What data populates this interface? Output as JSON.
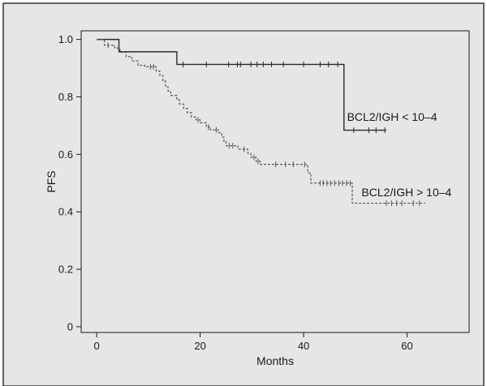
{
  "colors": {
    "outer_background": "#ffffff",
    "panel_background": "#e6e6e6",
    "frame": "#333333",
    "plot_area": "#e6e6e6",
    "axis": "#1a1a1a",
    "series_low": "#2a2a2a",
    "series_high": "#555555"
  },
  "chart_data": {
    "type": "line",
    "subtype": "kaplan-meier step curve",
    "title": "",
    "xlabel": "Months",
    "ylabel": "PFS",
    "xlim": [
      -3,
      72
    ],
    "ylim": [
      -0.02,
      1.03
    ],
    "x_ticks": [
      0,
      20,
      40,
      60
    ],
    "x_tick_labels": [
      "0",
      "20",
      "40",
      "60"
    ],
    "y_ticks": [
      0,
      0.2,
      0.4,
      0.6,
      0.8,
      1.0
    ],
    "y_tick_labels": [
      "0",
      "0.2",
      "0.4",
      "0.6",
      "0.8",
      "1.0"
    ],
    "grid": false,
    "legend": "none",
    "series": [
      {
        "name": "BCL2/IGH < 10–4",
        "line_style": "solid",
        "steps": [
          [
            0,
            1.0
          ],
          [
            4.3,
            0.957
          ],
          [
            15.5,
            0.913
          ],
          [
            47.8,
            0.684
          ],
          [
            56.0,
            0.684
          ]
        ],
        "censored_x": [
          16.7,
          21.2,
          25.5,
          27.2,
          27.8,
          29.8,
          31.0,
          32.2,
          33.8,
          36.1,
          40.0,
          43.2,
          44.8,
          46.6,
          49.7,
          52.6,
          54.0,
          55.7
        ]
      },
      {
        "name": "BCL2/IGH > 10–4",
        "line_style": "dashed",
        "steps": [
          [
            0,
            1.0
          ],
          [
            1.5,
            0.98
          ],
          [
            3.5,
            0.97
          ],
          [
            4.5,
            0.955
          ],
          [
            5.7,
            0.94
          ],
          [
            6.8,
            0.925
          ],
          [
            8.0,
            0.91
          ],
          [
            9.3,
            0.905
          ],
          [
            11.5,
            0.89
          ],
          [
            12.2,
            0.875
          ],
          [
            12.8,
            0.855
          ],
          [
            13.3,
            0.835
          ],
          [
            13.8,
            0.82
          ],
          [
            14.3,
            0.805
          ],
          [
            15.5,
            0.79
          ],
          [
            16.0,
            0.775
          ],
          [
            16.8,
            0.76
          ],
          [
            17.5,
            0.745
          ],
          [
            18.3,
            0.73
          ],
          [
            19.2,
            0.72
          ],
          [
            20.0,
            0.71
          ],
          [
            21.2,
            0.695
          ],
          [
            22.0,
            0.685
          ],
          [
            23.5,
            0.675
          ],
          [
            24.2,
            0.66
          ],
          [
            24.6,
            0.645
          ],
          [
            25.0,
            0.63
          ],
          [
            27.3,
            0.618
          ],
          [
            29.2,
            0.604
          ],
          [
            29.8,
            0.59
          ],
          [
            30.8,
            0.576
          ],
          [
            31.6,
            0.565
          ],
          [
            40.8,
            0.535
          ],
          [
            41.4,
            0.5
          ],
          [
            49.4,
            0.43
          ],
          [
            63.5,
            0.43
          ]
        ],
        "censored_x": [
          2.2,
          10.4,
          11.0,
          19.6,
          21.6,
          23.1,
          25.6,
          26.3,
          28.5,
          30.4,
          31.2,
          34.6,
          36.5,
          38.0,
          40.2,
          43.2,
          43.8,
          44.5,
          45.2,
          46.0,
          46.8,
          47.5,
          48.3,
          49.0,
          56.0,
          57.0,
          58.0,
          59.0,
          61.2,
          62.4
        ]
      }
    ],
    "annotations": [
      {
        "text": "BCL2/IGH < 10–4",
        "anchor_x": 48.4,
        "anchor_y": 0.716
      },
      {
        "text": "BCL2/IGH > 10–4",
        "anchor_x": 51.2,
        "anchor_y": 0.454
      }
    ]
  }
}
